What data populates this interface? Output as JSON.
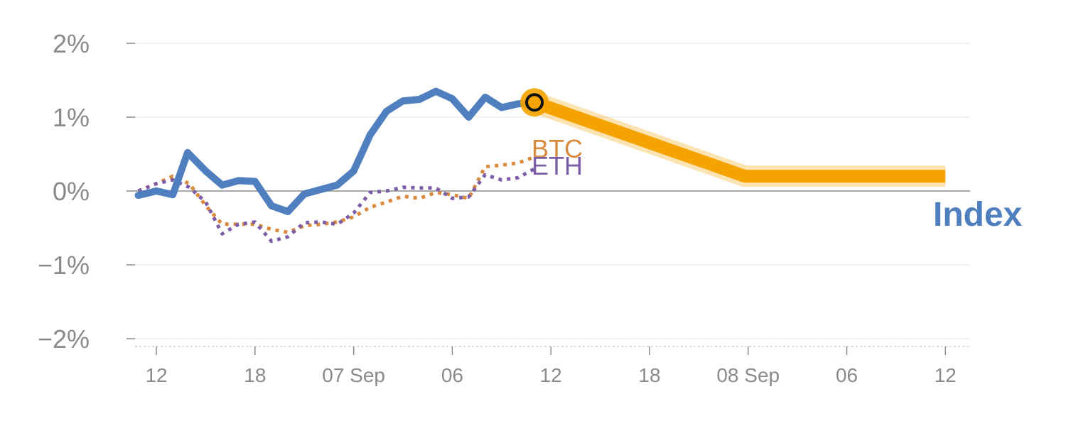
{
  "chart_data": {
    "type": "line",
    "y_unit": "%",
    "ylim": [
      -2,
      2
    ],
    "yticks": [
      {
        "value": 2,
        "label": "2%"
      },
      {
        "value": 1,
        "label": "1%"
      },
      {
        "value": 0,
        "label": "0%"
      },
      {
        "value": -1,
        "label": "−1%"
      },
      {
        "value": -2,
        "label": "−2%"
      }
    ],
    "x_unit": "hours",
    "xlim": [
      4.7,
      55.5
    ],
    "xticks": [
      {
        "value": 6,
        "label": "12"
      },
      {
        "value": 12,
        "label": "18"
      },
      {
        "value": 18,
        "label": "07 Sep"
      },
      {
        "value": 24,
        "label": "06"
      },
      {
        "value": 30,
        "label": "12"
      },
      {
        "value": 36,
        "label": "18"
      },
      {
        "value": 42,
        "label": "08 Sep"
      },
      {
        "value": 48,
        "label": "06"
      },
      {
        "value": 54,
        "label": "12"
      }
    ],
    "grid": true,
    "series": [
      {
        "name": "Index",
        "color": "#4f7fbf",
        "style": "solid",
        "x": [
          4.9,
          6,
          7,
          7.9,
          9,
          10,
          11,
          12,
          13,
          14,
          15,
          16,
          17,
          18,
          19,
          20,
          21,
          22,
          23,
          24,
          25,
          26,
          27,
          28,
          29
        ],
        "values": [
          -0.06,
          0.0,
          -0.05,
          0.52,
          0.27,
          0.08,
          0.14,
          0.13,
          -0.2,
          -0.28,
          -0.04,
          0.02,
          0.08,
          0.27,
          0.76,
          1.08,
          1.22,
          1.24,
          1.35,
          1.25,
          1.0,
          1.27,
          1.13,
          1.18,
          1.2
        ]
      },
      {
        "name": "BTC",
        "color": "#d98a3c",
        "style": "dotted",
        "x": [
          4.9,
          6,
          7,
          8,
          9,
          10,
          11,
          12,
          13,
          14,
          15,
          16,
          17,
          18,
          19,
          20,
          21,
          22,
          23,
          24,
          25,
          26,
          27,
          28,
          29
        ],
        "values": [
          0.0,
          0.1,
          0.2,
          0.1,
          -0.2,
          -0.45,
          -0.45,
          -0.45,
          -0.52,
          -0.56,
          -0.47,
          -0.45,
          -0.42,
          -0.35,
          -0.22,
          -0.15,
          -0.07,
          -0.1,
          -0.02,
          -0.05,
          -0.1,
          0.33,
          0.35,
          0.38,
          0.46
        ]
      },
      {
        "name": "ETH",
        "color": "#7d5ca8",
        "style": "dotted",
        "x": [
          4.9,
          6,
          7,
          8,
          9,
          10,
          11,
          12,
          13,
          14,
          15,
          16,
          17,
          18,
          19,
          20,
          21,
          22,
          23,
          24,
          25,
          26,
          27,
          28,
          29
        ],
        "values": [
          0.0,
          0.1,
          0.15,
          0.05,
          -0.15,
          -0.58,
          -0.45,
          -0.42,
          -0.68,
          -0.62,
          -0.43,
          -0.42,
          -0.45,
          -0.3,
          -0.02,
          0.0,
          0.05,
          0.04,
          0.04,
          -0.1,
          -0.08,
          0.22,
          0.15,
          0.18,
          0.3
        ]
      }
    ],
    "projection": {
      "color": "#f5a300",
      "x": [
        29,
        41.8,
        54
      ],
      "values": [
        1.2,
        0.2,
        0.2
      ]
    },
    "marker": {
      "x": 29,
      "value": 1.2
    },
    "labels": {
      "btc": "BTC",
      "eth": "ETH",
      "index": "Index"
    }
  }
}
